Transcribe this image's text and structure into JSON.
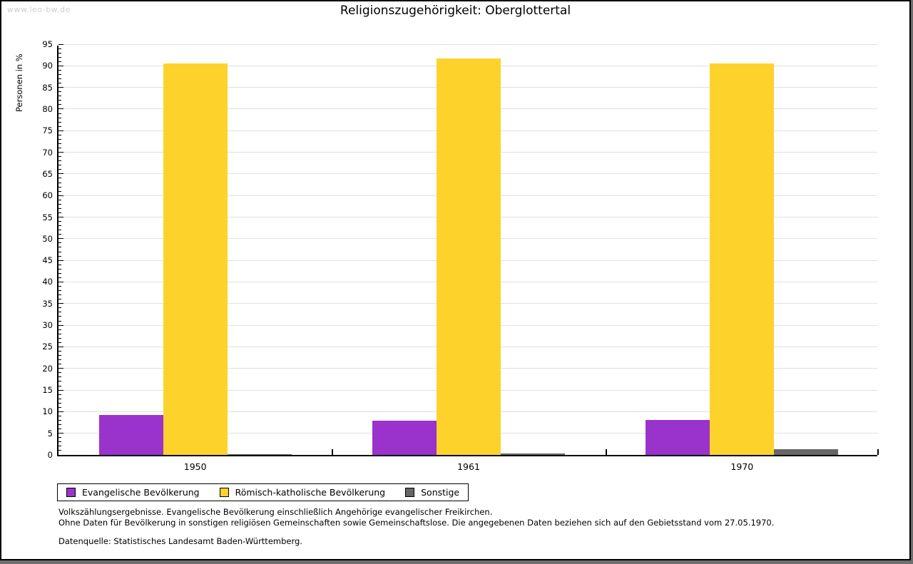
{
  "watermark": "www.leo-bw.de",
  "title": "Religionszugehörigkeit: Oberglottertal",
  "chart_data": {
    "type": "bar",
    "title": "Religionszugehörigkeit: Oberglottertal",
    "ylabel": "Personen in %",
    "xlabel": "",
    "categories": [
      "1950",
      "1961",
      "1970"
    ],
    "series": [
      {
        "name": "Evangelische Bevölkerung",
        "color": "#9933cc",
        "values": [
          9.3,
          8.0,
          8.1
        ]
      },
      {
        "name": "Römisch-katholische Bevölkerung",
        "color": "#fdd32b",
        "values": [
          90.5,
          91.7,
          90.6
        ]
      },
      {
        "name": "Sonstige",
        "color": "#666666",
        "values": [
          0.2,
          0.4,
          1.3
        ]
      }
    ],
    "ylim": [
      0,
      95
    ],
    "ytick_step": 5,
    "yminor_step": 1,
    "grid": true,
    "legend_position": "bottom-left",
    "gridline_color": "#e0e0e0"
  },
  "footnotes": {
    "line1": "Volkszählungsergebnisse. Evangelische Bevölkerung einschließlich Angehörige evangelischer Freikirchen.",
    "line2": "Ohne Daten für Bevölkerung in sonstigen religiösen Gemeinschaften sowie Gemeinschaftslose. Die angegebenen Daten beziehen sich auf den Gebietsstand vom 27.05.1970.",
    "source": "Datenquelle: Statistisches Landesamt Baden-Württemberg."
  },
  "colors": {
    "page_background": "#ffffff",
    "frame": "#000000",
    "shadow": "#6e6e6e",
    "watermark": "#cccccc"
  }
}
